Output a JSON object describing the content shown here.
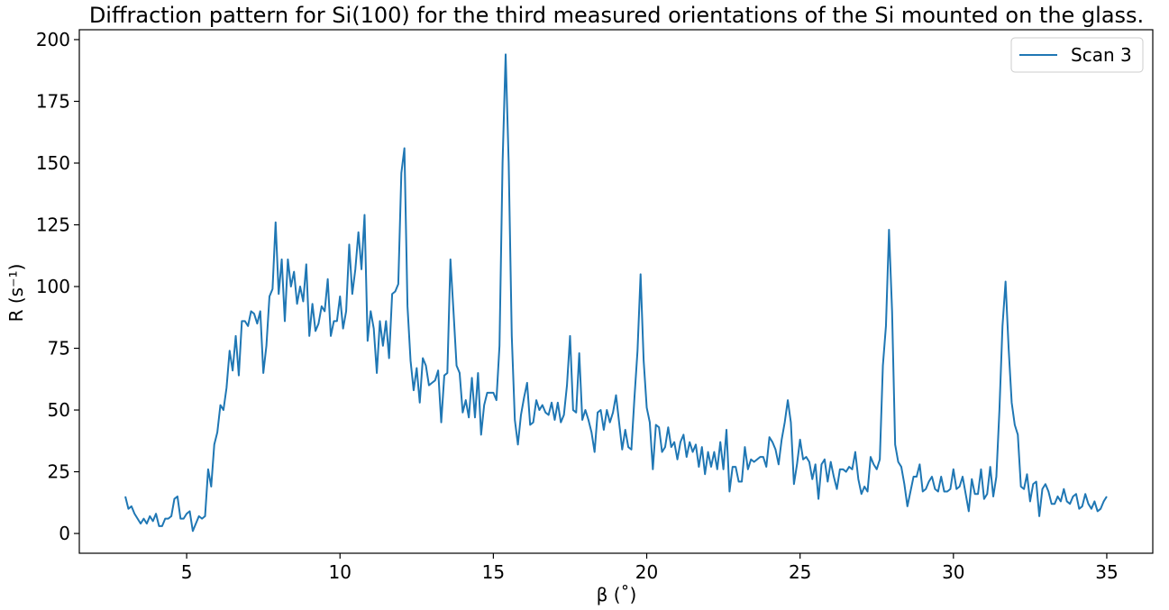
{
  "chart_data": {
    "type": "line",
    "title": "Diffraction pattern for Si(100) for the third measured orientations of the Si mounted on the glass.",
    "xlabel": "β (˚)",
    "ylabel": "R (s⁻¹)",
    "xlim": [
      1.5,
      36.5
    ],
    "ylim": [
      -8,
      204
    ],
    "xticks": [
      "5",
      "10",
      "15",
      "20",
      "25",
      "30",
      "35"
    ],
    "xtick_values": [
      5,
      10,
      15,
      20,
      25,
      30,
      35
    ],
    "yticks": [
      "0",
      "25",
      "50",
      "75",
      "100",
      "125",
      "150",
      "175",
      "200"
    ],
    "ytick_values": [
      0,
      25,
      50,
      75,
      100,
      125,
      150,
      175,
      200
    ],
    "grid": false,
    "legend_position": "top-right",
    "colors": {
      "series": "#1f77b4"
    },
    "x_start": 3.0,
    "x_step": 0.1,
    "series": [
      {
        "name": "Scan 3",
        "values": [
          15,
          10,
          11,
          8,
          6,
          4,
          6,
          4,
          7,
          5,
          8,
          3,
          3,
          6,
          6,
          7,
          14,
          15,
          6,
          6,
          8,
          9,
          1,
          4,
          7,
          6,
          7,
          26,
          19,
          36,
          41,
          52,
          50,
          59,
          74,
          66,
          80,
          64,
          86,
          86,
          84,
          90,
          89,
          85,
          90,
          65,
          76,
          96,
          99,
          126,
          97,
          111,
          86,
          111,
          100,
          106,
          93,
          100,
          94,
          109,
          80,
          93,
          82,
          85,
          92,
          90,
          103,
          80,
          86,
          86,
          96,
          83,
          90,
          117,
          97,
          107,
          122,
          107,
          129,
          78,
          90,
          83,
          65,
          86,
          76,
          86,
          71,
          97,
          98,
          101,
          146,
          156,
          92,
          70,
          58,
          67,
          53,
          71,
          68,
          60,
          61,
          62,
          66,
          45,
          64,
          65,
          111,
          90,
          68,
          65,
          49,
          54,
          47,
          63,
          47,
          65,
          40,
          52,
          57,
          57,
          57,
          54,
          76,
          150,
          194,
          150,
          80,
          46,
          36,
          48,
          55,
          61,
          44,
          45,
          54,
          50,
          52,
          49,
          48,
          53,
          46,
          53,
          45,
          48,
          60,
          80,
          50,
          49,
          73,
          46,
          50,
          46,
          41,
          33,
          49,
          50,
          42,
          50,
          45,
          49,
          56,
          45,
          34,
          42,
          35,
          34,
          55,
          74,
          105,
          70,
          51,
          45,
          26,
          44,
          43,
          33,
          35,
          43,
          35,
          37,
          30,
          37,
          40,
          31,
          37,
          33,
          36,
          27,
          35,
          24,
          33,
          27,
          33,
          26,
          37,
          26,
          42,
          17,
          27,
          27,
          21,
          21,
          35,
          26,
          30,
          29,
          30,
          31,
          31,
          27,
          39,
          37,
          34,
          28,
          38,
          45,
          54,
          45,
          20,
          28,
          38,
          30,
          31,
          29,
          22,
          28,
          14,
          28,
          30,
          21,
          29,
          23,
          18,
          26,
          26,
          25,
          27,
          26,
          33,
          22,
          16,
          19,
          17,
          31,
          28,
          26,
          30,
          68,
          84,
          123,
          90,
          36,
          29,
          27,
          20,
          11,
          17,
          23,
          23,
          28,
          17,
          18,
          21,
          23,
          18,
          17,
          23,
          17,
          17,
          18,
          26,
          18,
          19,
          23,
          16,
          9,
          22,
          16,
          16,
          26,
          14,
          16,
          27,
          15,
          23,
          50,
          84,
          102,
          75,
          53,
          44,
          40,
          19,
          18,
          24,
          13,
          20,
          21,
          7,
          18,
          20,
          17,
          12,
          12,
          15,
          13,
          18,
          13,
          12,
          15,
          16,
          10,
          11,
          16,
          12,
          10,
          13,
          9,
          10,
          13,
          15
        ]
      }
    ]
  }
}
